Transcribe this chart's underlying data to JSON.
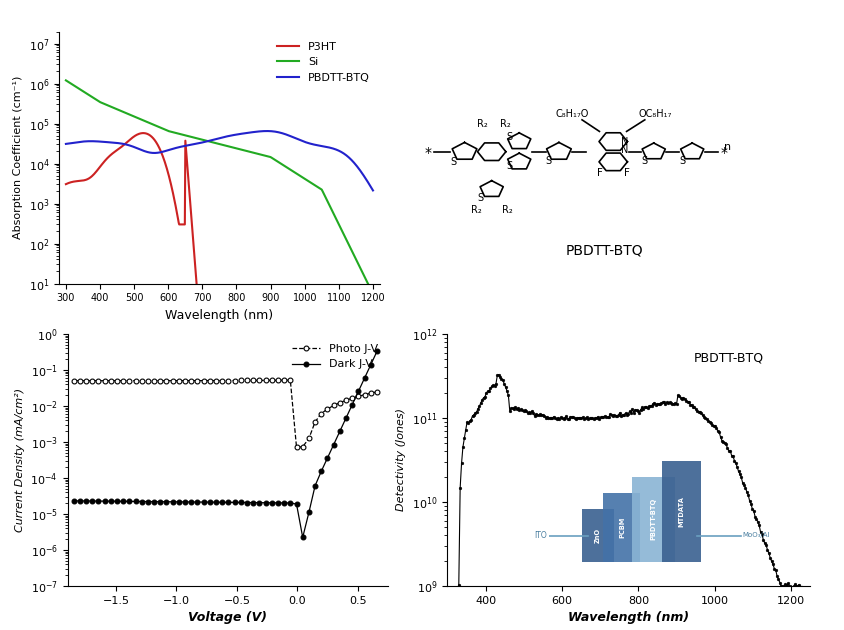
{
  "fig_width": 8.44,
  "fig_height": 6.3,
  "top_left": {
    "xlabel": "Wavelength (nm)",
    "ylabel": "Absorption Coefficient (cm⁻¹)",
    "xlim": [
      280,
      1220
    ],
    "ylim": [
      10,
      20000000.0
    ],
    "legend": [
      "P3HT",
      "Si",
      "PBDTT-BTQ"
    ],
    "legend_colors": [
      "#cc2222",
      "#22aa22",
      "#2222cc"
    ]
  },
  "bottom_left": {
    "xlabel": "Voltage (V)",
    "ylabel": "Current Density (mA/cm²)",
    "xlim": [
      -1.9,
      0.75
    ],
    "ylim": [
      1e-07,
      1.0
    ],
    "legend": [
      "Photo J-V",
      "Dark J-V"
    ]
  },
  "bottom_right": {
    "xlabel": "Wavelength (nm)",
    "ylabel": "Detectivity (Jones)",
    "xlim": [
      300,
      1250
    ],
    "ylim": [
      1000000000.0,
      1000000000000.0
    ],
    "title": "PBDTT-BTQ"
  }
}
